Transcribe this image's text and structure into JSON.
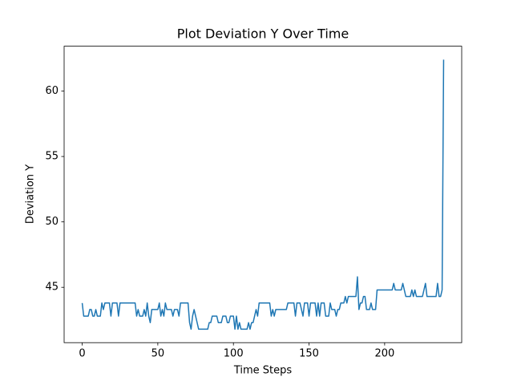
{
  "chart_data": {
    "type": "line",
    "title": "Plot Deviation Y Over Time",
    "x_label": "Time Steps",
    "y_label": "Deviation Y",
    "xlim": [
      -11.95,
      250.95
    ],
    "ylim": [
      40.77,
      63.43
    ],
    "xticks": [
      0,
      50,
      100,
      150,
      200
    ],
    "yticks": [
      45,
      50,
      55,
      60
    ],
    "x": [
      0,
      1,
      2,
      3,
      4,
      5,
      6,
      7,
      8,
      9,
      10,
      11,
      12,
      13,
      14,
      15,
      16,
      17,
      18,
      19,
      20,
      21,
      22,
      23,
      24,
      25,
      26,
      27,
      28,
      29,
      30,
      31,
      32,
      33,
      34,
      35,
      36,
      37,
      38,
      39,
      40,
      41,
      42,
      43,
      44,
      45,
      46,
      47,
      48,
      49,
      50,
      51,
      52,
      53,
      54,
      55,
      56,
      57,
      58,
      59,
      60,
      61,
      62,
      63,
      64,
      65,
      66,
      67,
      68,
      69,
      70,
      71,
      72,
      73,
      74,
      75,
      76,
      77,
      78,
      79,
      80,
      81,
      82,
      83,
      84,
      85,
      86,
      87,
      88,
      89,
      90,
      91,
      92,
      93,
      94,
      95,
      96,
      97,
      98,
      99,
      100,
      101,
      102,
      103,
      104,
      105,
      106,
      107,
      108,
      109,
      110,
      111,
      112,
      113,
      114,
      115,
      116,
      117,
      118,
      119,
      120,
      121,
      122,
      123,
      124,
      125,
      126,
      127,
      128,
      129,
      130,
      131,
      132,
      133,
      134,
      135,
      136,
      137,
      138,
      139,
      140,
      141,
      142,
      143,
      144,
      145,
      146,
      147,
      148,
      149,
      150,
      151,
      152,
      153,
      154,
      155,
      156,
      157,
      158,
      159,
      160,
      161,
      162,
      163,
      164,
      165,
      166,
      167,
      168,
      169,
      170,
      171,
      172,
      173,
      174,
      175,
      176,
      177,
      178,
      179,
      180,
      181,
      182,
      183,
      184,
      185,
      186,
      187,
      188,
      189,
      190,
      191,
      192,
      193,
      194,
      195,
      196,
      197,
      198,
      199,
      200,
      201,
      202,
      203,
      204,
      205,
      206,
      207,
      208,
      209,
      210,
      211,
      212,
      213,
      214,
      215,
      216,
      217,
      218,
      219,
      220,
      221,
      222,
      223,
      224,
      225,
      226,
      227,
      228,
      229,
      230,
      231,
      232,
      233,
      234,
      235,
      236,
      237,
      238,
      239
    ],
    "series": [
      {
        "color": "#1f77b4",
        "values": [
          43.8,
          42.8,
          42.8,
          42.8,
          42.8,
          43.3,
          43.3,
          42.8,
          42.8,
          43.3,
          42.8,
          42.8,
          42.8,
          43.8,
          43.3,
          43.8,
          43.8,
          43.8,
          43.8,
          42.8,
          43.8,
          43.8,
          43.8,
          43.8,
          42.8,
          43.8,
          43.8,
          43.8,
          43.8,
          43.8,
          43.8,
          43.8,
          43.8,
          43.8,
          43.8,
          43.8,
          42.8,
          43.3,
          42.8,
          42.8,
          42.8,
          43.3,
          42.8,
          43.8,
          42.8,
          42.3,
          43.3,
          43.3,
          43.3,
          43.3,
          43.3,
          43.8,
          42.8,
          43.3,
          42.8,
          43.8,
          43.3,
          43.3,
          43.3,
          43.3,
          42.8,
          43.3,
          43.3,
          43.3,
          42.8,
          43.8,
          43.8,
          43.8,
          43.8,
          43.8,
          43.8,
          42.3,
          41.8,
          42.8,
          43.3,
          42.8,
          42.3,
          41.8,
          41.8,
          41.8,
          41.8,
          41.8,
          41.8,
          41.8,
          42.3,
          42.3,
          42.8,
          42.8,
          42.8,
          42.8,
          42.3,
          42.3,
          42.3,
          42.8,
          42.8,
          42.8,
          42.3,
          42.3,
          42.8,
          42.8,
          42.8,
          41.8,
          42.8,
          41.8,
          42.3,
          41.8,
          41.8,
          41.8,
          41.8,
          41.8,
          42.3,
          41.8,
          42.3,
          42.3,
          42.8,
          43.3,
          42.8,
          43.8,
          43.8,
          43.8,
          43.8,
          43.8,
          43.8,
          43.8,
          43.8,
          42.8,
          43.3,
          42.8,
          43.3,
          43.3,
          43.3,
          43.3,
          43.3,
          43.3,
          43.3,
          43.3,
          43.8,
          43.8,
          43.8,
          43.8,
          43.8,
          42.8,
          43.8,
          43.8,
          43.8,
          43.3,
          42.8,
          43.8,
          43.8,
          43.8,
          42.8,
          43.8,
          43.8,
          43.8,
          43.8,
          42.8,
          43.8,
          42.8,
          43.8,
          43.8,
          43.8,
          42.8,
          42.8,
          42.8,
          43.8,
          43.3,
          43.3,
          43.3,
          42.8,
          43.3,
          43.3,
          43.8,
          43.8,
          43.8,
          44.3,
          43.8,
          44.3,
          44.3,
          44.3,
          44.3,
          44.3,
          44.3,
          45.8,
          43.3,
          43.8,
          43.8,
          44.3,
          44.3,
          43.3,
          43.3,
          43.3,
          43.8,
          43.3,
          43.3,
          43.3,
          44.8,
          44.8,
          44.8,
          44.8,
          44.8,
          44.8,
          44.8,
          44.8,
          44.8,
          44.8,
          44.8,
          45.3,
          44.8,
          44.8,
          44.8,
          44.8,
          44.8,
          45.3,
          44.8,
          44.3,
          44.3,
          44.3,
          44.3,
          44.8,
          44.3,
          44.8,
          44.3,
          44.3,
          44.3,
          44.3,
          44.3,
          44.8,
          45.3,
          44.3,
          44.3,
          44.3,
          44.3,
          44.3,
          44.3,
          44.3,
          45.3,
          44.3,
          44.3,
          44.8,
          62.4
        ]
      }
    ]
  }
}
